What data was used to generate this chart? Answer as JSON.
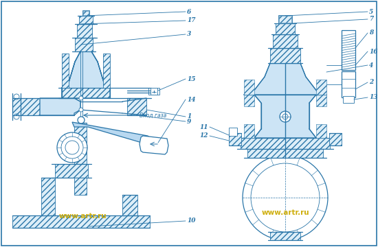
{
  "bg_color": "#ffffff",
  "line_color": "#2975a8",
  "fill_color": "#cce4f5",
  "hatch_fc": "#ddeef8",
  "watermark_color": "#ccaa00",
  "watermark_text": "www.artr.ru",
  "arrow_text": "Вход газа",
  "fig_width": 5.5,
  "fig_height": 3.6,
  "dpi": 100
}
